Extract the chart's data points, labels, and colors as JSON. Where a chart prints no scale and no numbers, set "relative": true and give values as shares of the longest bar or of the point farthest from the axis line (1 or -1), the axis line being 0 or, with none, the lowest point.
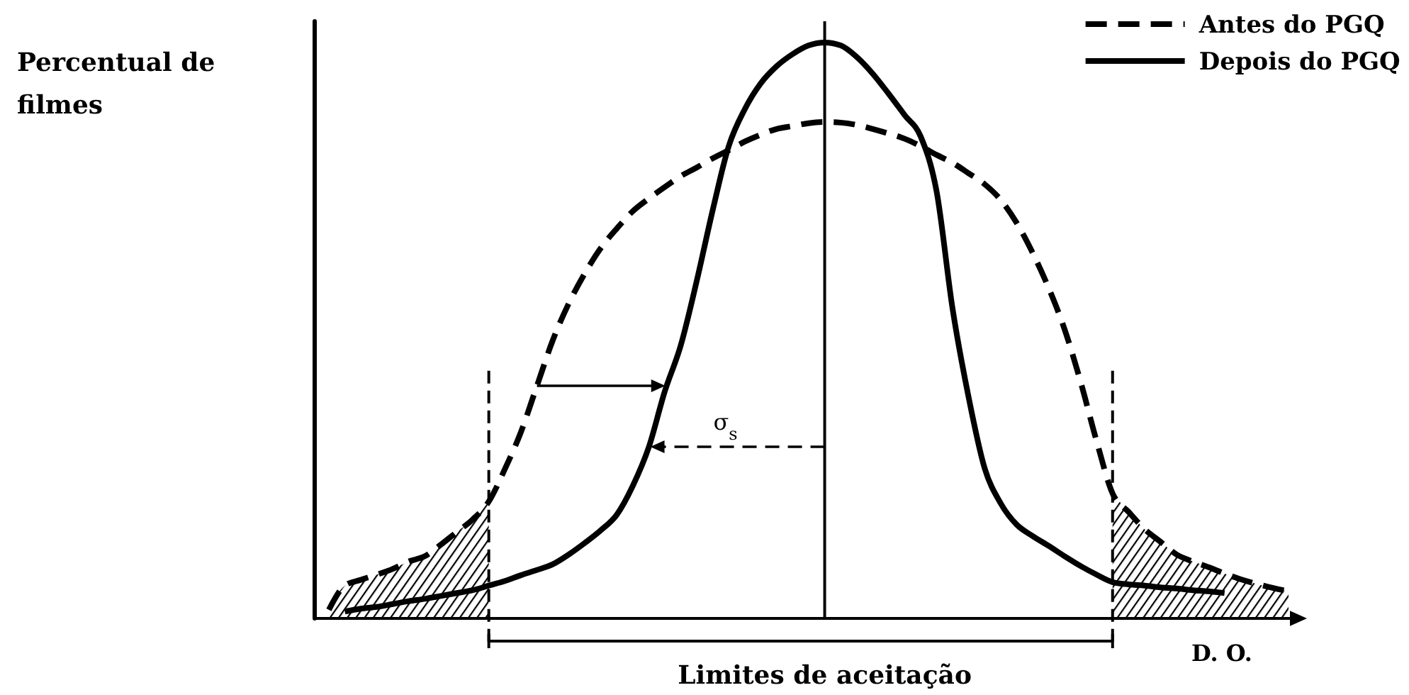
{
  "chart_data": {
    "type": "line",
    "relative": true,
    "ylabel": "Percentual de filmes",
    "xlabel": "D. O.",
    "legend": "top right",
    "categories": [
      null,
      null,
      null,
      null,
      null,
      null,
      null,
      null,
      null,
      null,
      null,
      null,
      null,
      null,
      null,
      null,
      null,
      null,
      null,
      null,
      null,
      null,
      null,
      null,
      null,
      null,
      null,
      null,
      null,
      null,
      null,
      null,
      null,
      null,
      null,
      null,
      null,
      null,
      null,
      null,
      null,
      null,
      null,
      null,
      null,
      null,
      null,
      null,
      null,
      null,
      null,
      null,
      null,
      null,
      null,
      null,
      null,
      null,
      null,
      null,
      null
    ],
    "series": [
      {
        "name": "Antes do PGQ",
        "color": "#000000",
        "line_style": "dashed",
        "values": [
          0.015,
          0.057,
          0.067,
          0.076,
          0.086,
          0.099,
          0.108,
          0.128,
          0.15,
          0.172,
          0.203,
          0.259,
          0.323,
          0.403,
          0.483,
          0.547,
          0.599,
          0.643,
          0.677,
          0.707,
          0.729,
          0.749,
          0.768,
          0.783,
          0.799,
          0.813,
          0.828,
          0.84,
          0.85,
          0.855,
          0.86,
          0.862,
          0.861,
          0.857,
          0.85,
          0.842,
          0.833,
          0.82,
          0.805,
          0.791,
          0.773,
          0.754,
          0.727,
          0.687,
          0.635,
          0.574,
          0.502,
          0.411,
          0.308,
          0.217,
          0.185,
          0.155,
          0.133,
          0.111,
          0.099,
          0.089,
          0.078,
          0.068,
          0.06,
          0.053,
          0.047
        ]
      },
      {
        "name": "Depois do PGQ",
        "color": "#000000",
        "line_style": "solid",
        "values": [
          null,
          0.012,
          0.017,
          0.02,
          0.025,
          0.03,
          0.034,
          0.039,
          0.044,
          0.049,
          0.057,
          0.065,
          0.075,
          0.084,
          0.094,
          0.111,
          0.131,
          0.153,
          0.18,
          0.23,
          0.297,
          0.394,
          0.474,
          0.586,
          0.709,
          0.82,
          0.884,
          0.929,
          0.959,
          0.98,
          0.995,
          1,
          0.995,
          0.975,
          0.946,
          0.911,
          0.874,
          0.837,
          0.741,
          0.537,
          0.384,
          0.261,
          0.2,
          0.163,
          0.143,
          0.126,
          0.108,
          0.091,
          0.076,
          0.063,
          0.059,
          0.057,
          0.054,
          0.052,
          0.049,
          0.047,
          0.044,
          null,
          null,
          null,
          null
        ]
      },
      {
        "type": "area",
        "color": "#000000",
        "values": [
          0.015,
          0.057,
          0.067,
          0.076,
          0.086,
          0.099,
          0.108,
          0.128,
          0.15,
          0.172,
          0.203,
          null,
          null,
          null,
          null,
          null,
          null,
          null,
          null,
          null,
          null,
          null,
          null,
          null,
          null,
          null,
          null,
          null,
          null,
          null,
          null,
          null,
          null,
          null,
          null,
          null,
          null,
          null,
          null,
          null,
          null,
          null,
          null,
          null,
          null,
          null,
          null,
          null,
          null,
          0.217,
          0.185,
          0.155,
          0.133,
          0.111,
          0.099,
          0.089,
          0.078,
          0.068,
          0.06,
          0.053,
          0.047
        ]
      }
    ],
    "annotations": [
      "Limites de aceitação",
      "σ$_{s}$"
    ]
  }
}
